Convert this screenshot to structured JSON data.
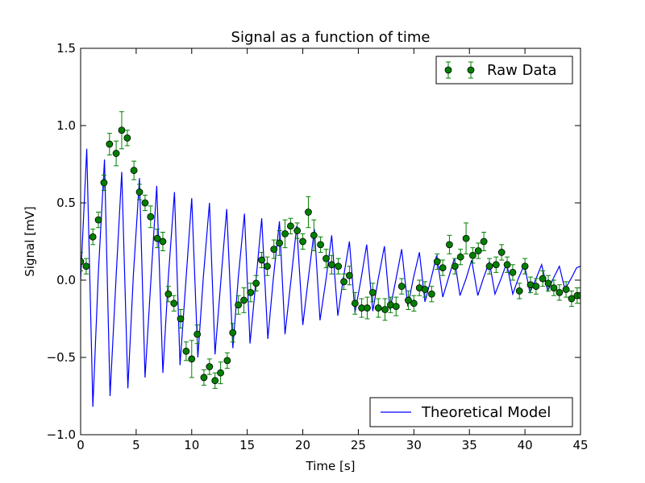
{
  "chart_data": {
    "type": "line+errorbar",
    "title": "Signal as a function of time",
    "xlabel": "Time [s]",
    "ylabel": "Signal [mV]",
    "xlim": [
      0,
      45
    ],
    "ylim": [
      -1.0,
      1.5
    ],
    "xticks": [
      0,
      5,
      10,
      15,
      20,
      25,
      30,
      35,
      40,
      45
    ],
    "xtick_labels": [
      "0",
      "5",
      "10",
      "15",
      "20",
      "25",
      "30",
      "35",
      "40",
      "45"
    ],
    "yticks": [
      -1.0,
      -0.5,
      0.0,
      0.5,
      1.0,
      1.5
    ],
    "ytick_labels": [
      "−1.0",
      "−0.5",
      "0.0",
      "0.5",
      "1.0",
      "1.5"
    ],
    "grid": false,
    "legends": [
      {
        "position": "top-right",
        "entries": [
          "Raw Data"
        ]
      },
      {
        "position": "bottom-right",
        "entries": [
          "Theoretical Model"
        ]
      }
    ],
    "series": [
      {
        "name": "Theoretical Model",
        "kind": "line",
        "color": "#0000ff",
        "x": [
          0.0,
          0.55,
          1.1,
          1.6,
          2.15,
          2.65,
          3.2,
          3.7,
          4.25,
          4.75,
          5.3,
          5.8,
          6.35,
          6.85,
          7.4,
          7.9,
          8.45,
          8.95,
          9.5,
          10.0,
          10.55,
          11.05,
          11.6,
          12.1,
          12.65,
          13.15,
          13.7,
          14.2,
          14.75,
          15.25,
          15.8,
          16.3,
          16.85,
          17.35,
          17.9,
          18.4,
          18.95,
          19.45,
          20.0,
          20.5,
          21.05,
          21.55,
          22.1,
          22.6,
          23.15,
          23.65,
          24.2,
          24.7,
          25.25,
          25.75,
          26.3,
          26.8,
          27.35,
          27.85,
          28.4,
          28.9,
          29.45,
          29.95,
          30.5,
          31.0,
          31.55,
          32.05,
          32.6,
          33.1,
          33.65,
          34.15,
          34.7,
          35.2,
          35.75,
          36.25,
          36.8,
          37.3,
          37.85,
          38.35,
          38.9,
          39.4,
          39.95,
          40.45,
          41.0,
          41.5,
          42.05,
          42.55,
          43.1,
          43.6,
          44.15,
          44.65,
          45.0
        ],
        "y": [
          0.0,
          0.85,
          -0.82,
          0.05,
          0.78,
          -0.75,
          0.03,
          0.7,
          -0.7,
          0.03,
          0.66,
          -0.63,
          0.03,
          0.61,
          -0.6,
          0.02,
          0.57,
          -0.55,
          0.02,
          0.53,
          -0.5,
          0.02,
          0.5,
          -0.48,
          0.02,
          0.46,
          -0.44,
          0.02,
          0.43,
          -0.41,
          0.01,
          0.4,
          -0.38,
          0.01,
          0.38,
          -0.35,
          0.01,
          0.35,
          -0.29,
          0.01,
          0.33,
          -0.26,
          0.01,
          0.29,
          -0.23,
          0.01,
          0.25,
          -0.21,
          0.01,
          0.23,
          -0.2,
          0.01,
          0.22,
          -0.19,
          0.01,
          0.2,
          -0.17,
          0.01,
          0.18,
          -0.14,
          0.01,
          0.16,
          -0.11,
          0.01,
          0.14,
          -0.1,
          0.01,
          0.13,
          -0.1,
          0.01,
          0.12,
          -0.09,
          0.01,
          0.11,
          -0.09,
          0.01,
          0.1,
          -0.08,
          0.01,
          0.1,
          -0.07,
          0.01,
          0.09,
          -0.06,
          0.01,
          0.08,
          0.09
        ]
      },
      {
        "name": "Raw Data",
        "kind": "errorbar",
        "color": "#008000",
        "x": [
          0.0,
          0.5,
          1.1,
          1.6,
          2.1,
          2.6,
          3.2,
          3.7,
          4.2,
          4.8,
          5.3,
          5.8,
          6.3,
          6.9,
          7.4,
          7.9,
          8.4,
          9.0,
          9.5,
          10.0,
          10.5,
          11.1,
          11.6,
          12.1,
          12.6,
          13.2,
          13.7,
          14.2,
          14.7,
          15.3,
          15.8,
          16.3,
          16.8,
          17.4,
          17.9,
          18.4,
          18.9,
          19.5,
          20.0,
          20.5,
          21.0,
          21.6,
          22.1,
          22.6,
          23.2,
          23.7,
          24.2,
          24.7,
          25.3,
          25.8,
          26.3,
          26.8,
          27.4,
          27.9,
          28.4,
          28.9,
          29.5,
          30.0,
          30.5,
          31.0,
          31.6,
          32.1,
          32.6,
          33.2,
          33.7,
          34.2,
          34.7,
          35.3,
          35.8,
          36.3,
          36.8,
          37.4,
          37.9,
          38.4,
          38.9,
          39.5,
          40.0,
          40.5,
          41.0,
          41.6,
          42.1,
          42.6,
          43.1,
          43.7,
          44.2,
          44.7,
          45.0
        ],
        "y": [
          0.12,
          0.09,
          0.28,
          0.39,
          0.63,
          0.88,
          0.82,
          0.97,
          0.92,
          0.71,
          0.57,
          0.5,
          0.41,
          0.27,
          0.25,
          -0.09,
          -0.15,
          -0.25,
          -0.46,
          -0.51,
          -0.35,
          -0.63,
          -0.56,
          -0.65,
          -0.6,
          -0.52,
          -0.34,
          -0.16,
          -0.13,
          -0.08,
          -0.02,
          0.13,
          0.09,
          0.2,
          0.24,
          0.3,
          0.35,
          0.32,
          0.25,
          0.44,
          0.29,
          0.23,
          0.14,
          0.1,
          0.09,
          -0.01,
          0.03,
          -0.15,
          -0.18,
          -0.18,
          -0.08,
          -0.18,
          -0.19,
          -0.16,
          -0.17,
          -0.04,
          -0.13,
          -0.15,
          -0.05,
          -0.06,
          -0.09,
          0.12,
          0.08,
          0.23,
          0.09,
          0.15,
          0.27,
          0.16,
          0.19,
          0.25,
          0.09,
          0.1,
          0.18,
          0.1,
          0.05,
          -0.07,
          0.09,
          -0.03,
          -0.04,
          0.01,
          -0.02,
          -0.05,
          -0.08,
          -0.06,
          -0.12,
          -0.1,
          -0.1
        ],
        "yerr": [
          0.06,
          0.05,
          0.05,
          0.05,
          0.05,
          0.07,
          0.08,
          0.12,
          0.05,
          0.06,
          0.05,
          0.05,
          0.07,
          0.06,
          0.06,
          0.05,
          0.05,
          0.06,
          0.06,
          0.12,
          0.06,
          0.05,
          0.05,
          0.05,
          0.07,
          0.05,
          0.06,
          0.06,
          0.08,
          0.06,
          0.05,
          0.05,
          0.06,
          0.06,
          0.08,
          0.09,
          0.05,
          0.05,
          0.05,
          0.1,
          0.1,
          0.05,
          0.06,
          0.06,
          0.05,
          0.05,
          0.06,
          0.07,
          0.06,
          0.07,
          0.06,
          0.06,
          0.07,
          0.05,
          0.06,
          0.05,
          0.06,
          0.05,
          0.05,
          0.05,
          0.05,
          0.05,
          0.05,
          0.06,
          0.05,
          0.05,
          0.1,
          0.05,
          0.05,
          0.06,
          0.05,
          0.05,
          0.05,
          0.05,
          0.05,
          0.05,
          0.05,
          0.05,
          0.05,
          0.05,
          0.05,
          0.05,
          0.05,
          0.05,
          0.05,
          0.05,
          0.05
        ]
      }
    ]
  }
}
